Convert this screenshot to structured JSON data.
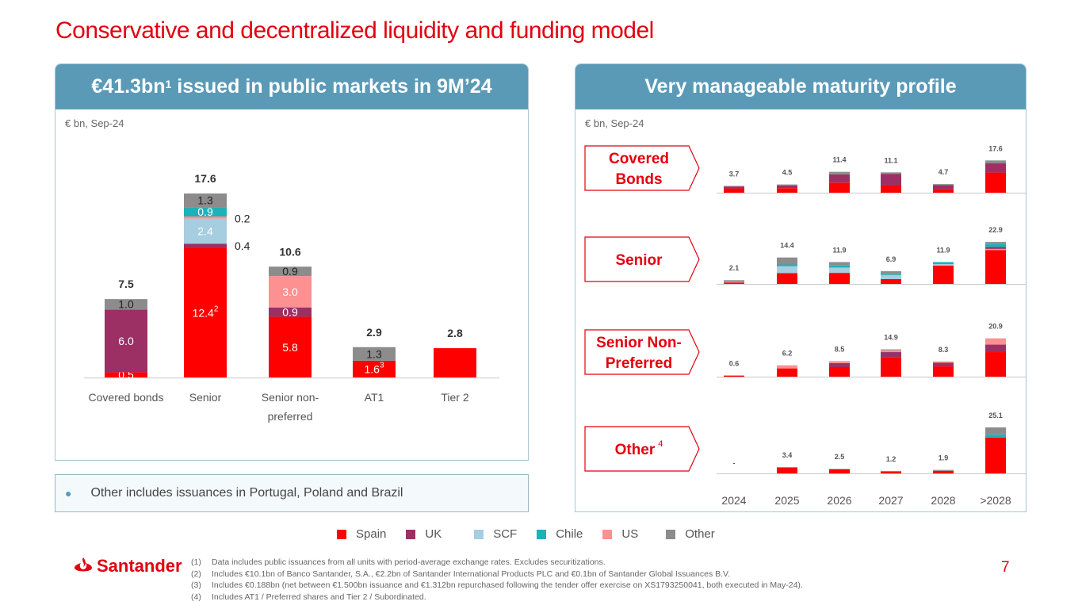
{
  "page": {
    "title": "Conservative and decentralized liquidity and funding model",
    "page_number": "7"
  },
  "left_panel": {
    "header_main": "€41.3bn",
    "header_sup": "1",
    "header_rest": " issued in public markets in 9M’24",
    "unit": "€ bn, Sep-24",
    "note": "Other includes issuances in Portugal, Poland and Brazil"
  },
  "right_panel": {
    "header": "Very manageable maturity profile",
    "unit": "€ bn, Sep-24"
  },
  "colors": {
    "Spain": "#ff0000",
    "UK": "#9c3065",
    "SCF": "#a6cde0",
    "Chile": "#1fb1b8",
    "US": "#fd9090",
    "Other": "#8c8c8c",
    "brand_red": "#e3000f",
    "header_blue": "#5b9ab6"
  },
  "legend": [
    {
      "name": "Spain",
      "color": "#ff0000"
    },
    {
      "name": "UK",
      "color": "#9c3065"
    },
    {
      "name": "SCF",
      "color": "#a6cde0"
    },
    {
      "name": "Chile",
      "color": "#1fb1b8"
    },
    {
      "name": "US",
      "color": "#fd9090"
    },
    {
      "name": "Other",
      "color": "#8c8c8c"
    }
  ],
  "chart_data": [
    {
      "type": "bar",
      "stacked": true,
      "title": "€41.3bn issued in public markets in 9M’24",
      "subtitle": "€ bn, Sep-24",
      "categories": [
        "Covered bonds",
        "Senior",
        "Senior non-preferred",
        "AT1",
        "Tier 2"
      ],
      "category_label_lines": [
        [
          "Covered bonds"
        ],
        [
          "Senior"
        ],
        [
          "Senior non-",
          "preferred"
        ],
        [
          "AT1"
        ],
        [
          "Tier 2"
        ]
      ],
      "totals": [
        "7.5",
        "17.6",
        "10.6",
        "2.9",
        "2.8"
      ],
      "series": [
        {
          "name": "Spain",
          "values": [
            0.5,
            12.4,
            5.8,
            1.6,
            2.8
          ],
          "labels": [
            "0.5",
            "12.4",
            "5.8",
            "1.6",
            ""
          ],
          "sups": [
            "",
            "2",
            "",
            "3",
            ""
          ]
        },
        {
          "name": "UK",
          "values": [
            6.0,
            0.4,
            0.9,
            0,
            0
          ],
          "labels": [
            "6.0",
            "0.4",
            "0.9",
            "",
            ""
          ],
          "sups": [
            "",
            "",
            "",
            "",
            ""
          ]
        },
        {
          "name": "SCF",
          "values": [
            0,
            2.4,
            0,
            0,
            0
          ],
          "labels": [
            "",
            "2.4",
            "",
            "",
            ""
          ],
          "sups": [
            "",
            "",
            "",
            "",
            ""
          ]
        },
        {
          "name": "US",
          "values": [
            0,
            0.2,
            3.0,
            0,
            0
          ],
          "labels": [
            "",
            "0.2",
            "3.0",
            "",
            ""
          ],
          "sups": [
            "",
            "",
            "",
            "",
            ""
          ]
        },
        {
          "name": "Chile",
          "values": [
            0,
            0.9,
            0,
            0,
            0
          ],
          "labels": [
            "",
            "0.9",
            "",
            "",
            ""
          ],
          "sups": [
            "",
            "",
            "",
            "",
            ""
          ]
        },
        {
          "name": "Other",
          "values": [
            1.0,
            1.3,
            0.9,
            1.3,
            0
          ],
          "labels": [
            "1.0",
            "1.3",
            "0.9",
            "1.3",
            ""
          ],
          "sups": [
            "",
            "",
            "",
            "",
            ""
          ]
        }
      ],
      "outside_labels": [
        "0.4",
        "0.2"
      ],
      "ylim": [
        0,
        18
      ],
      "grid": false,
      "legend": "bottom"
    },
    {
      "type": "bar",
      "stacked": true,
      "title": "Very manageable maturity profile",
      "subtitle": "€ bn, Sep-24",
      "categories": [
        "2024",
        "2025",
        "2026",
        "2027",
        "2028",
        ">2028"
      ],
      "panels": [
        {
          "name": "Covered Bonds",
          "sup": "",
          "totals": [
            "3.7",
            "4.5",
            "11.4",
            "11.1",
            "4.7",
            "17.6"
          ],
          "series": [
            {
              "name": "Spain",
              "values": [
                2.4,
                2.5,
                5.5,
                3.9,
                1.9,
                11.0
              ]
            },
            {
              "name": "UK",
              "values": [
                1.0,
                1.5,
                4.5,
                6.4,
                2.2,
                5.0
              ]
            },
            {
              "name": "Other",
              "values": [
                0.3,
                0.5,
                1.4,
                0.8,
                0.6,
                1.6
              ]
            }
          ]
        },
        {
          "name": "Senior",
          "sup": "",
          "totals": [
            "2.1",
            "14.4",
            "11.9",
            "6.9",
            "11.9",
            "22.9"
          ],
          "series": [
            {
              "name": "Spain",
              "values": [
                0.7,
                5.7,
                6.0,
                2.6,
                10.0,
                18.5
              ]
            },
            {
              "name": "US",
              "values": [
                0.3,
                0,
                0,
                0,
                0,
                0.6
              ]
            },
            {
              "name": "UK",
              "values": [
                0.3,
                0.3,
                0,
                0,
                0,
                1.0
              ]
            },
            {
              "name": "SCF",
              "values": [
                0.3,
                3.6,
                2.9,
                2.2,
                0.8,
                0
              ]
            },
            {
              "name": "Chile",
              "values": [
                0.2,
                1.0,
                1.4,
                0.5,
                1.1,
                1.6
              ]
            },
            {
              "name": "Other",
              "values": [
                0.3,
                3.8,
                1.6,
                1.6,
                0,
                1.2
              ]
            }
          ]
        },
        {
          "name": "Senior Non-Preferred",
          "sup": "",
          "totals": [
            "0.6",
            "6.2",
            "8.5",
            "14.9",
            "8.3",
            "20.9"
          ],
          "series": [
            {
              "name": "Spain",
              "values": [
                0.6,
                4.5,
                5.2,
                10.7,
                5.6,
                13.4
              ]
            },
            {
              "name": "UK",
              "values": [
                0,
                0,
                2.2,
                2.7,
                2.0,
                4.1
              ]
            },
            {
              "name": "US",
              "values": [
                0,
                1.7,
                1.1,
                1.0,
                0.7,
                3.4
              ]
            },
            {
              "name": "Other",
              "values": [
                0,
                0,
                0,
                0.5,
                0,
                0
              ]
            }
          ]
        },
        {
          "name": "Other",
          "sup": "4",
          "totals": [
            "-",
            "3.4",
            "2.5",
            "1.2",
            "1.9",
            "25.1"
          ],
          "series": [
            {
              "name": "Spain",
              "values": [
                0,
                3.2,
                2.2,
                1.1,
                1.4,
                19.6
              ]
            },
            {
              "name": "Chile",
              "values": [
                0,
                0,
                0,
                0,
                0,
                1.7
              ]
            },
            {
              "name": "Other",
              "values": [
                0,
                0.2,
                0.3,
                0.1,
                0.5,
                3.8
              ]
            }
          ]
        }
      ],
      "ylim": [
        0,
        26
      ],
      "grid": false,
      "legend": "bottom"
    }
  ],
  "footer": {
    "logo_text": "Santander",
    "footnotes": [
      {
        "num": "(1)",
        "text": "Data includes public issuances from all units with period-average exchange rates. Excludes securitizations."
      },
      {
        "num": "(2)",
        "text": "Includes €10.1bn of Banco Santander, S.A., €2.2bn of Santander International Products PLC and €0.1bn of Santander Global Issuances B.V."
      },
      {
        "num": "(3)",
        "text": "Includes €0.188bn (net between €1.500bn issuance and €1.312bn repurchased following the tender offer exercise on XS1793250041, both executed in May-24)."
      },
      {
        "num": "(4)",
        "text": "Includes AT1 / Preferred shares and Tier 2 / Subordinated."
      }
    ]
  }
}
